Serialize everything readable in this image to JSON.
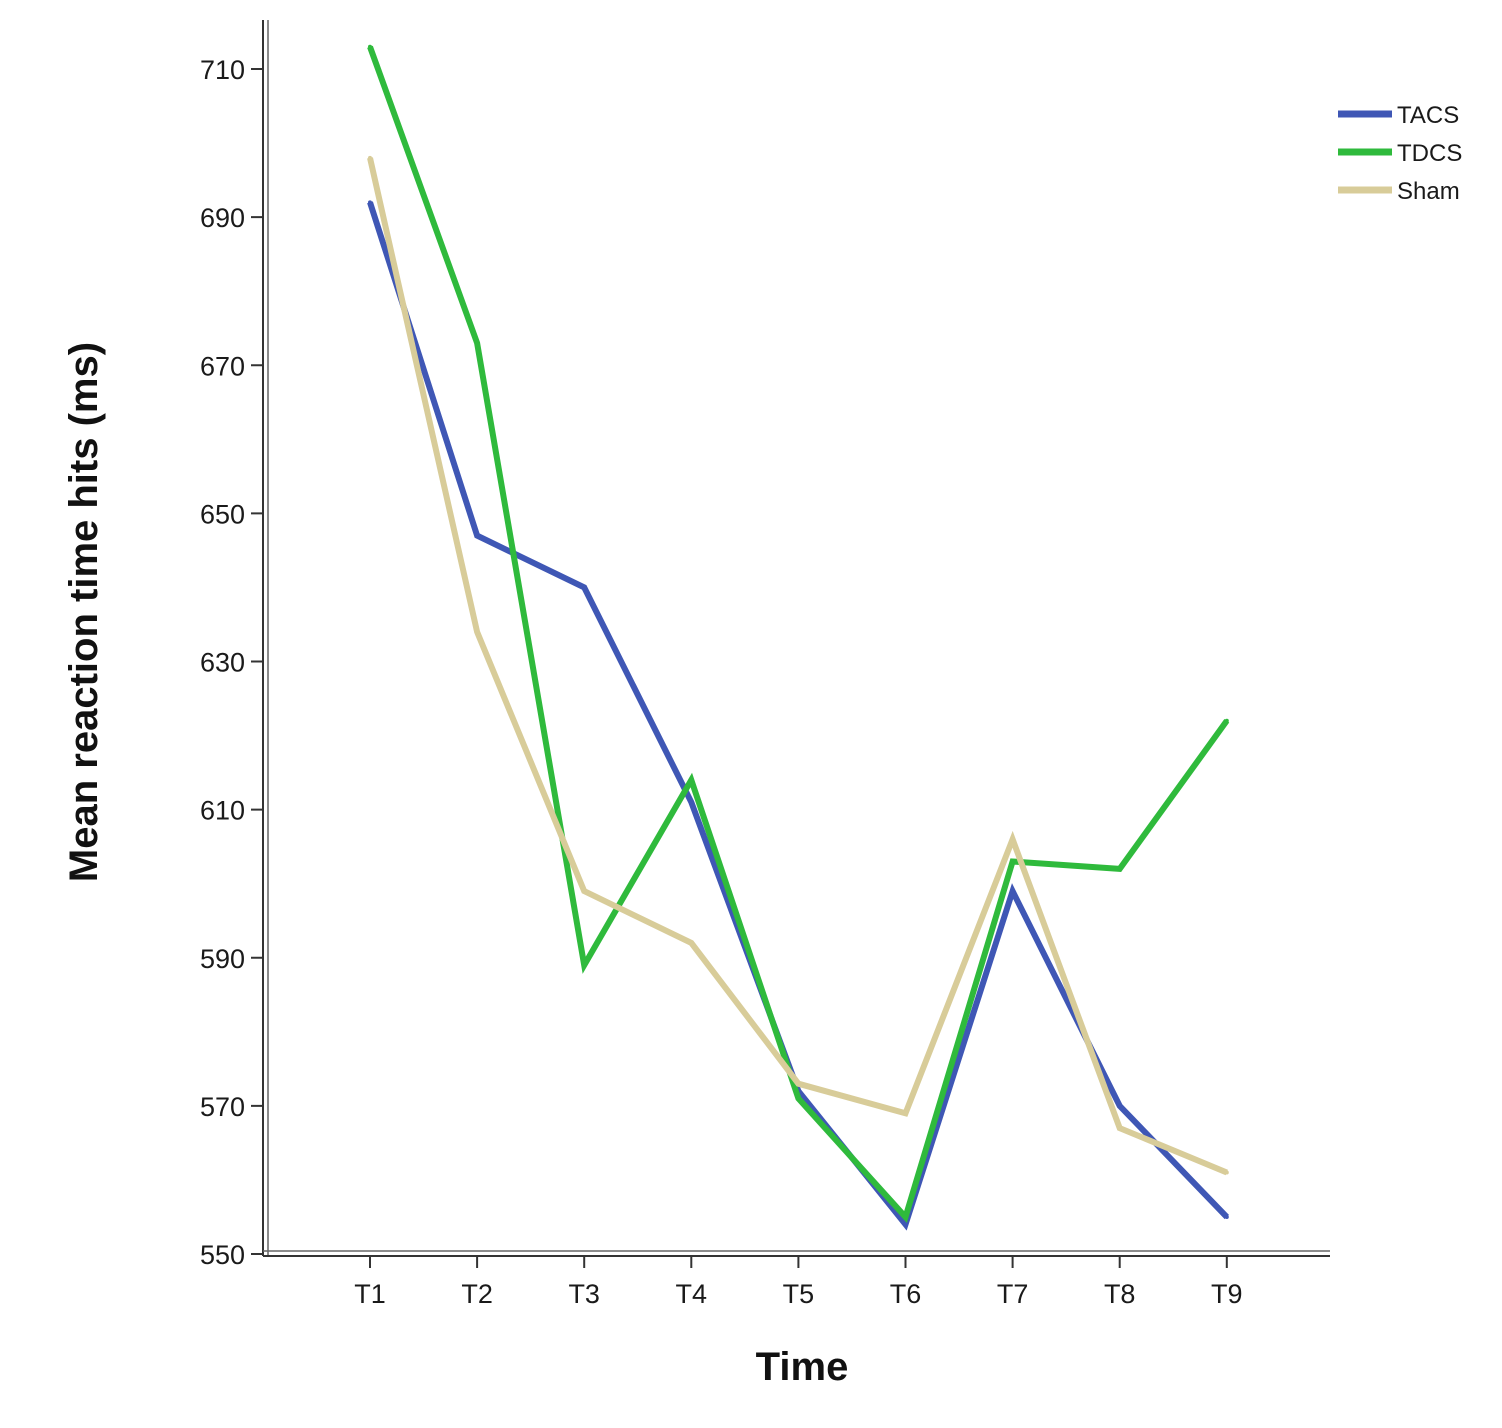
{
  "chart_data": {
    "type": "line",
    "title": "",
    "xlabel": "Time",
    "ylabel": "Mean reaction time hits (ms)",
    "categories": [
      "T1",
      "T2",
      "T3",
      "T4",
      "T5",
      "T6",
      "T7",
      "T8",
      "T9"
    ],
    "ylim": [
      550,
      710
    ],
    "yticks": [
      550,
      570,
      590,
      610,
      630,
      650,
      670,
      690,
      710
    ],
    "yticks_labels": [
      "550",
      "570",
      "590",
      "610",
      "630",
      "650",
      "670",
      "690",
      "710"
    ],
    "legend_position": "top-right",
    "grid": false,
    "series": [
      {
        "name": "TACS",
        "color": "#3f57b5",
        "values": [
          692,
          647,
          640,
          611,
          572,
          554,
          599,
          570,
          555
        ]
      },
      {
        "name": "TDCS",
        "color": "#2fba3c",
        "values": [
          713,
          673,
          589,
          614,
          571,
          555,
          603,
          602,
          622
        ]
      },
      {
        "name": "Sham",
        "color": "#d8cc99",
        "values": [
          698,
          634,
          599,
          592,
          573,
          569,
          606,
          567,
          561
        ]
      }
    ]
  }
}
